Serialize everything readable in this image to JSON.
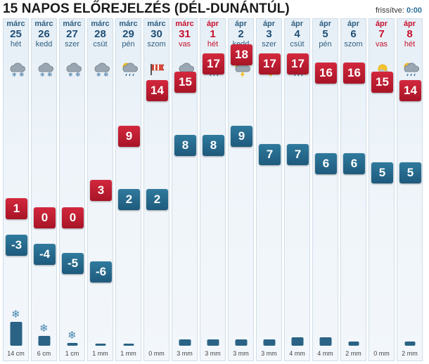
{
  "title": "15 NAPOS ELŐREJELZÉS (DÉL-DUNÁNTÚL)",
  "updated_label": "frissítve:",
  "updated_time": "0:00",
  "colors": {
    "high": "#b81c30",
    "low": "#24658a",
    "weekend": "#c8102e",
    "text": "#1f4f77"
  },
  "days": [
    {
      "month": "márc",
      "day": "25",
      "dow": "hét",
      "icon": "snow-cloud-icon",
      "high": "1",
      "low": "-3",
      "precip": "14 cm",
      "precip_amount": 14,
      "precip_type": "snow",
      "weekend": false
    },
    {
      "month": "márc",
      "day": "26",
      "dow": "kedd",
      "icon": "snow-cloud-icon",
      "high": "0",
      "low": "-4",
      "precip": "6 cm",
      "precip_amount": 6,
      "precip_type": "snow",
      "weekend": false
    },
    {
      "month": "márc",
      "day": "27",
      "dow": "szer",
      "icon": "snow-cloud-icon",
      "high": "0",
      "low": "-5",
      "precip": "1 cm",
      "precip_amount": 1,
      "precip_type": "snow",
      "weekend": false
    },
    {
      "month": "márc",
      "day": "28",
      "dow": "csüt",
      "icon": "snow-cloud-icon",
      "high": "3",
      "low": "-6",
      "precip": "1 mm",
      "precip_amount": 1,
      "precip_type": "rain",
      "weekend": false
    },
    {
      "month": "márc",
      "day": "29",
      "dow": "pén",
      "icon": "partly-cloudy-rain-icon",
      "high": "9",
      "low": "2",
      "precip": "1 mm",
      "precip_amount": 1,
      "precip_type": "rain",
      "weekend": false
    },
    {
      "month": "márc",
      "day": "30",
      "dow": "szom",
      "icon": "wind-sock-icon",
      "high": "14",
      "low": "2",
      "precip": "0 mm",
      "precip_amount": 0,
      "precip_type": "none",
      "weekend": false
    },
    {
      "month": "márc",
      "day": "31",
      "dow": "vas",
      "icon": "rain-cloud-icon",
      "high": "15",
      "low": "8",
      "precip": "3 mm",
      "precip_amount": 3,
      "precip_type": "rain",
      "weekend": true
    },
    {
      "month": "ápr",
      "day": "1",
      "dow": "hét",
      "icon": "rain-cloud-icon",
      "high": "17",
      "low": "8",
      "precip": "3 mm",
      "precip_amount": 3,
      "precip_type": "rain",
      "weekend": true
    },
    {
      "month": "ápr",
      "day": "2",
      "dow": "kedd",
      "icon": "thunderstorm-icon",
      "high": "18",
      "low": "9",
      "precip": "3 mm",
      "precip_amount": 3,
      "precip_type": "rain",
      "weekend": false
    },
    {
      "month": "ápr",
      "day": "3",
      "dow": "szer",
      "icon": "thunderstorm-icon",
      "high": "17",
      "low": "7",
      "precip": "3 mm",
      "precip_amount": 3,
      "precip_type": "rain",
      "weekend": false
    },
    {
      "month": "ápr",
      "day": "4",
      "dow": "csüt",
      "icon": "rain-cloud-icon",
      "high": "17",
      "low": "7",
      "precip": "4 mm",
      "precip_amount": 4,
      "precip_type": "rain",
      "weekend": false
    },
    {
      "month": "ápr",
      "day": "5",
      "dow": "pén",
      "icon": "rain-cloud-icon",
      "high": "16",
      "low": "6",
      "precip": "4 mm",
      "precip_amount": 4,
      "precip_type": "rain",
      "weekend": false
    },
    {
      "month": "ápr",
      "day": "6",
      "dow": "szom",
      "icon": "partly-cloudy-icon",
      "high": "16",
      "low": "6",
      "precip": "2 mm",
      "precip_amount": 2,
      "precip_type": "rain",
      "weekend": false
    },
    {
      "month": "ápr",
      "day": "7",
      "dow": "vas",
      "icon": "sun-cloud-icon",
      "high": "15",
      "low": "5",
      "precip": "0 mm",
      "precip_amount": 0,
      "precip_type": "none",
      "weekend": true
    },
    {
      "month": "ápr",
      "day": "8",
      "dow": "hét",
      "icon": "partly-cloudy-rain-icon",
      "high": "14",
      "low": "5",
      "precip": "2 mm",
      "precip_amount": 2,
      "precip_type": "rain",
      "weekend": true
    }
  ]
}
